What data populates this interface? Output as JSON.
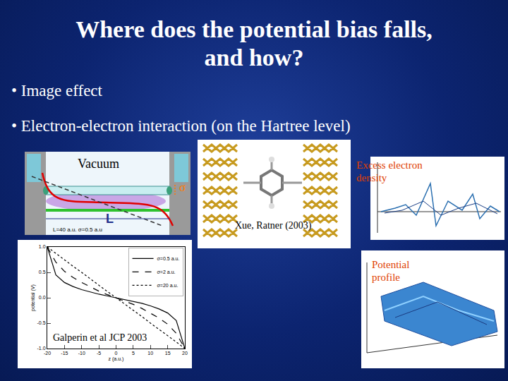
{
  "slide": {
    "title": [
      "Where does the potential bias falls,",
      "and how?"
    ],
    "bullets": [
      "• Image effect",
      "• Electron-electron interaction (on the Hartree level)"
    ]
  },
  "wire_diagram": {
    "region": "Vacuum",
    "length_label": "L",
    "radius_label": "σ",
    "caption": "L=40 a.u. σ=0.5 a.u"
  },
  "molecule_figure": {
    "citation": "Xue, Ratner (2003)"
  },
  "density_plot": {
    "label": "Excess electron density"
  },
  "profile_plot": {
    "label": "Potential profile"
  },
  "chart_data": {
    "type": "line",
    "x": [
      -20,
      -17.5,
      -15,
      -12.5,
      -10,
      -7.5,
      -5,
      -2.5,
      0,
      2.5,
      5,
      7.5,
      10,
      12.5,
      15,
      17.5,
      20
    ],
    "series": [
      {
        "name": "σ=0.5 a.u.",
        "color": "#000000",
        "line_style": "solid",
        "values": [
          1.0,
          0.45,
          0.3,
          0.22,
          0.16,
          0.11,
          0.07,
          0.035,
          0,
          -0.035,
          -0.07,
          -0.11,
          -0.16,
          -0.22,
          -0.3,
          -0.45,
          -1.0
        ]
      },
      {
        "name": "σ=2 a.u.",
        "color": "#000000",
        "line_style": "dash",
        "values": [
          1.0,
          0.7,
          0.52,
          0.4,
          0.3,
          0.21,
          0.13,
          0.06,
          0,
          -0.06,
          -0.13,
          -0.21,
          -0.3,
          -0.4,
          -0.52,
          -0.7,
          -1.0
        ]
      },
      {
        "name": "σ=20 a.u.",
        "color": "#000000",
        "line_style": "dot",
        "values": [
          1.0,
          0.87,
          0.75,
          0.62,
          0.5,
          0.37,
          0.25,
          0.12,
          0,
          -0.12,
          -0.25,
          -0.37,
          -0.5,
          -0.62,
          -0.75,
          -0.87,
          -1.0
        ]
      }
    ],
    "xlabel": "z (a.u.)",
    "ylabel": "potential (V)",
    "xlim": [
      -20,
      20
    ],
    "xticks": [
      -20,
      -15,
      -10,
      -5,
      0,
      5,
      10,
      15,
      20
    ],
    "ylim": [
      -1.0,
      1.0
    ],
    "yticks": [
      {
        "value": -1,
        "label": "-1.0"
      },
      {
        "value": -0.5,
        "label": "-0.5"
      },
      {
        "value": 0,
        "label": "0.0"
      },
      {
        "value": 0.5,
        "label": "0.5"
      },
      {
        "value": 1,
        "label": "1.0"
      }
    ],
    "legend": "upper right",
    "grid": false,
    "annotations": [
      "Galperin et al JCP 2003"
    ]
  }
}
